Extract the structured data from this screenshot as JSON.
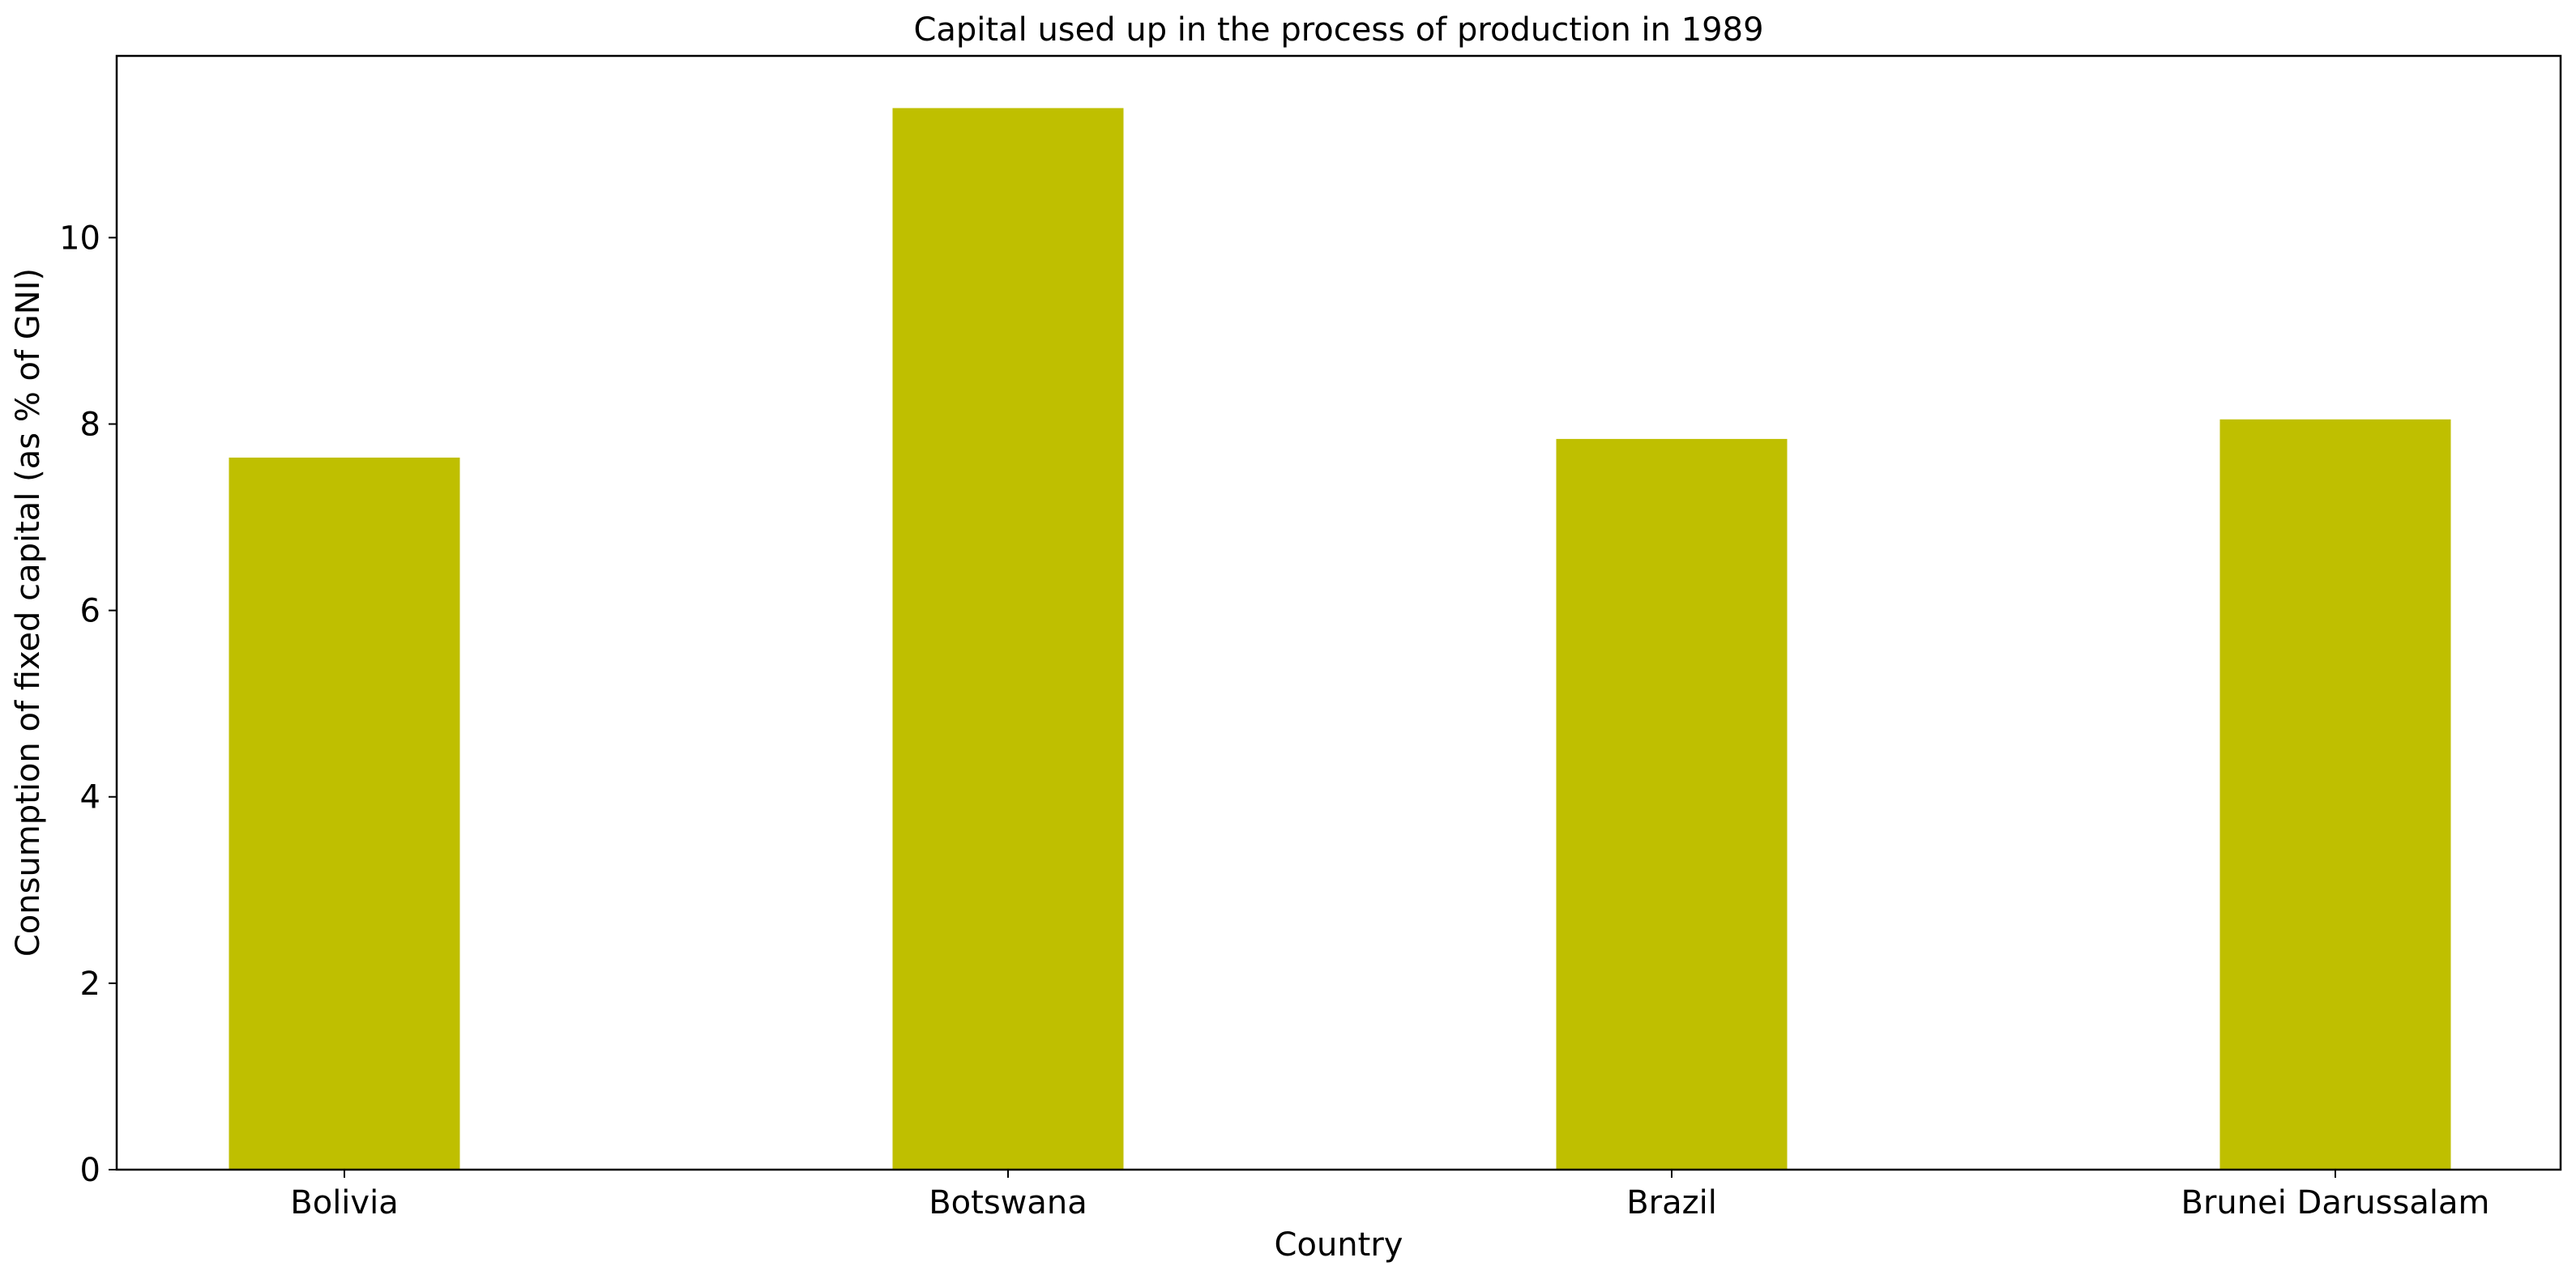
{
  "chart_data": {
    "type": "bar",
    "title": "Capital used up in the process of production in 1989",
    "xlabel": "Country",
    "ylabel": "Consumption of fixed capital (as % of GNI)",
    "categories": [
      "Bolivia",
      "Botswana",
      "Brazil",
      "Brunei Darussalam"
    ],
    "values": [
      7.64,
      11.39,
      7.84,
      8.05
    ],
    "ylim": [
      0,
      11.95
    ],
    "yticks": [
      0,
      2,
      4,
      6,
      8,
      10
    ],
    "grid": false,
    "legend": "none",
    "bar_color": "#bfbf00"
  }
}
